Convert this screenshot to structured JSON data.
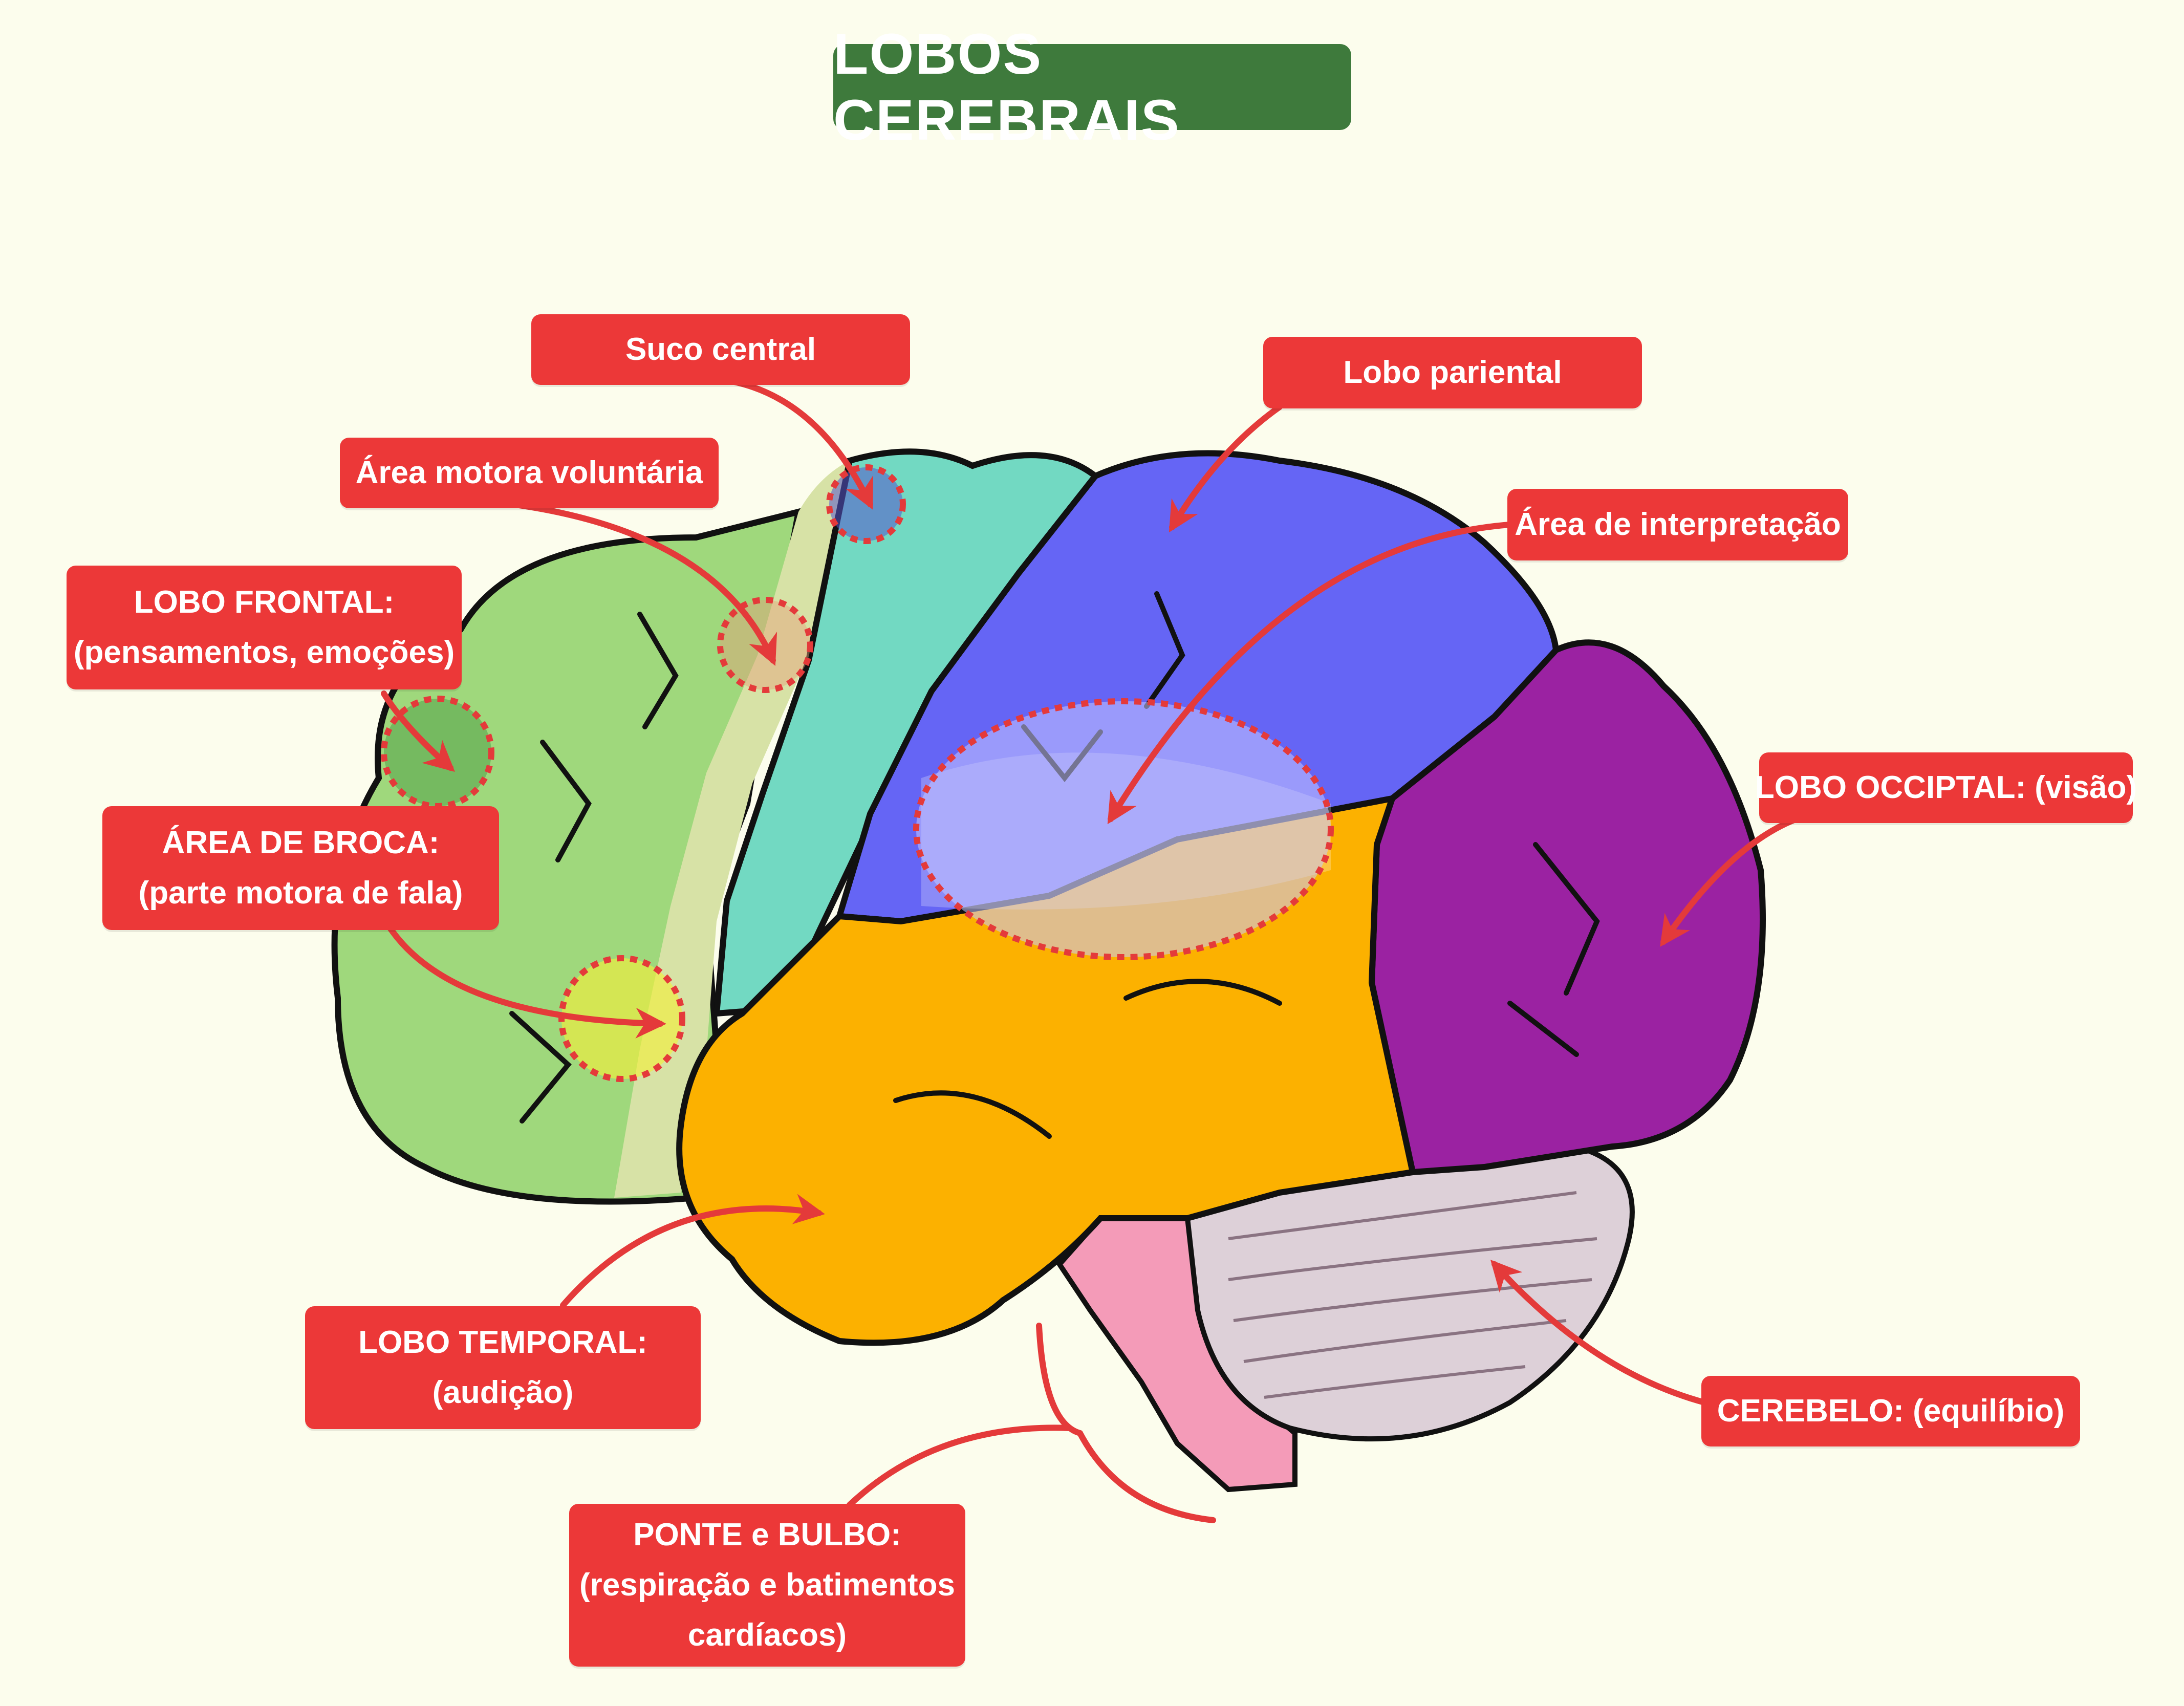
{
  "title": "LOBOS CEREBRAIS",
  "colors": {
    "background": "#fcfded",
    "title_bg": "#3e7a3c",
    "label_bg": "#ec3838",
    "arrow": "#e43a3a",
    "frontal": "#9fd87c",
    "motor": "#d7e2a6",
    "central": "#72d9c2",
    "parietal": "#6565f5",
    "occipital": "#9b22a2",
    "temporal": "#fcb100",
    "cerebellum": "#ddd0d8",
    "brainstem": "#f49bb8"
  },
  "labels": {
    "suco_central": "Suco central",
    "area_motora": "Área motora voluntária",
    "lobo_frontal_title": "LOBO FRONTAL:",
    "lobo_frontal_desc": "(pensamentos, emoções)",
    "broca_title": "ÁREA DE BROCA:",
    "broca_desc": "(parte motora de fala)",
    "lobo_temporal_title": "LOBO TEMPORAL:",
    "lobo_temporal_desc": "(audição)",
    "ponte_title": "PONTE e BULBO:",
    "ponte_line2": "(respiração e batimentos",
    "ponte_line3": "cardíacos)",
    "lobo_pariental": "Lobo pariental",
    "area_interpretacao": "Área de interpretação",
    "lobo_occipital": "LOBO OCCIPTAL: (visão)",
    "cerebelo": "CEREBELO: (equilíbio)"
  }
}
